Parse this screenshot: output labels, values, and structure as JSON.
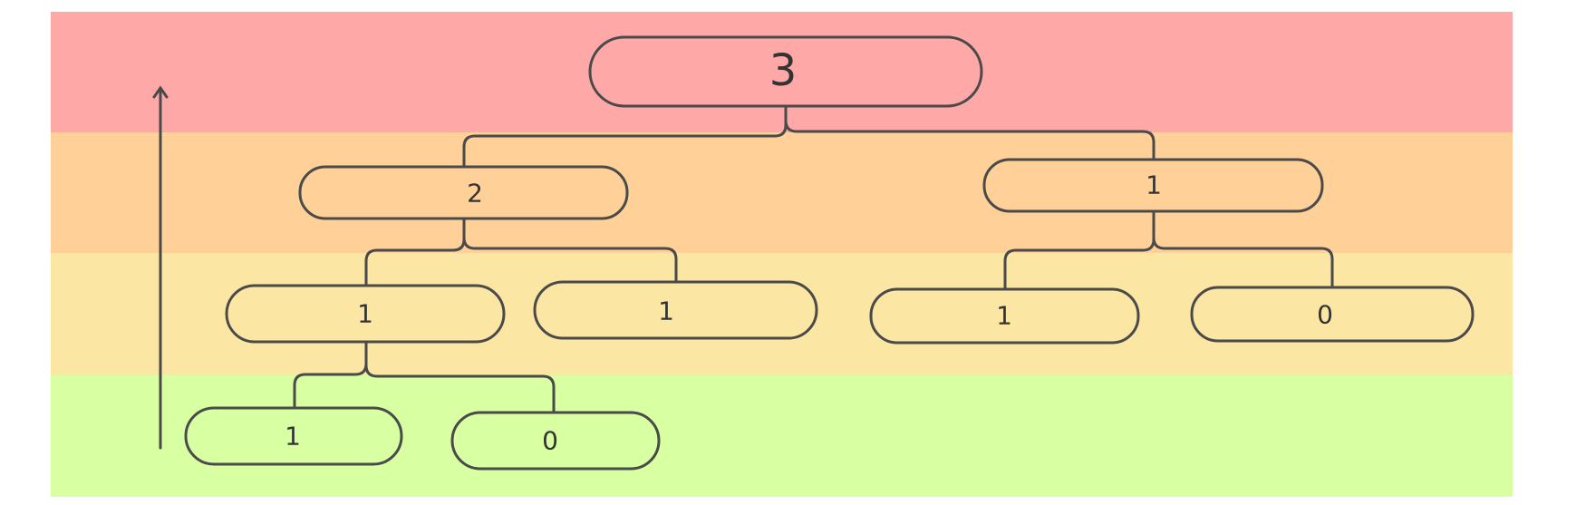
{
  "colors": {
    "band_top": "#ffa8a8",
    "band_2": "#ffd199",
    "band_3": "#fbe7a3",
    "band_bottom": "#d9ffa3",
    "stroke": "#4a4a4a",
    "text": "#333333"
  },
  "tree": {
    "root": {
      "value": "3"
    },
    "n_left": {
      "value": "2"
    },
    "n_right": {
      "value": "1"
    },
    "n_ll": {
      "value": "1"
    },
    "n_lr": {
      "value": "1"
    },
    "n_rl": {
      "value": "1"
    },
    "n_rr": {
      "value": "0"
    },
    "n_lll": {
      "value": "1"
    },
    "n_llr": {
      "value": "0"
    }
  },
  "arrow": {
    "direction": "up",
    "icon": "arrow-up-icon"
  }
}
